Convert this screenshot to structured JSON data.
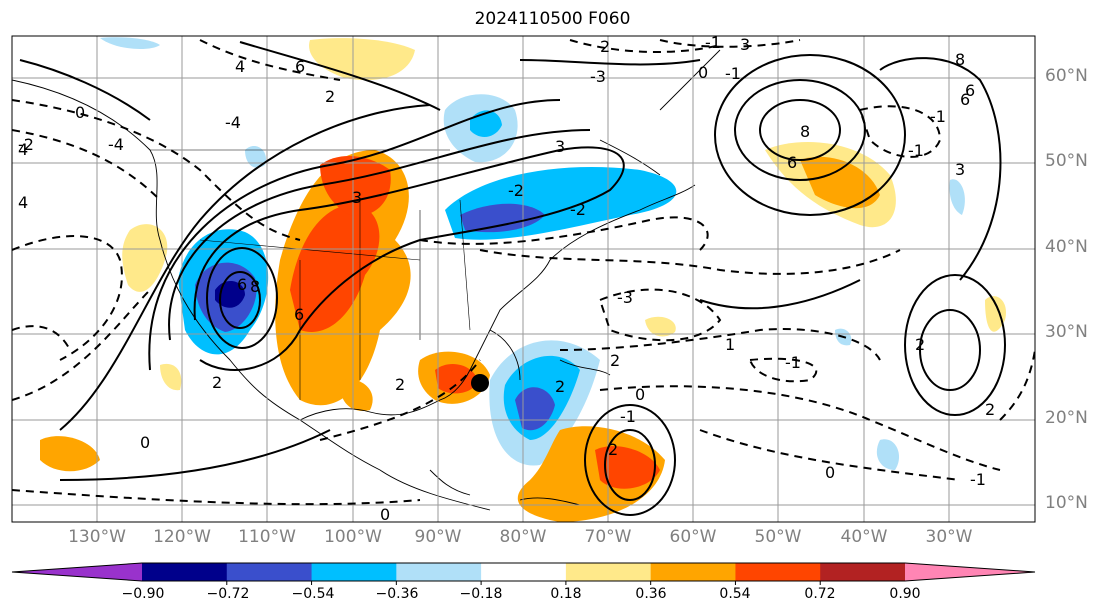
{
  "title": "2024110500 F060",
  "lat_labels": [
    "60°N",
    "50°N",
    "40°N",
    "30°N",
    "20°N",
    "10°N"
  ],
  "lon_labels": [
    "130°W",
    "120°W",
    "110°W",
    "100°W",
    "90°W",
    "80°W",
    "70°W",
    "60°W",
    "50°W",
    "40°W",
    "30°W"
  ],
  "colorbar": {
    "ticks": [
      "−0.90",
      "−0.72",
      "−0.54",
      "−0.36",
      "−0.18",
      "0.18",
      "0.36",
      "0.54",
      "0.72",
      "0.90"
    ],
    "colors": [
      "#9932cc",
      "#00008b",
      "#3a4fcc",
      "#00bfff",
      "#b0e0f8",
      "#ffffff",
      "#ffe98a",
      "#ffa500",
      "#ff4500",
      "#b22222",
      "#ff85b4"
    ]
  },
  "colors": {
    "land_outline": "#000000",
    "grid": "#9a9a9a",
    "contour": "#000000",
    "marker": "#000000"
  },
  "contour_labels": [
    "2",
    "6",
    "3",
    "8",
    "6",
    "3",
    "2",
    "1",
    "0",
    "-1",
    "6",
    "-2",
    "3",
    "-1",
    "2",
    "0",
    "2",
    "-3",
    "0",
    "-1",
    "-2",
    "-4",
    "-2",
    "4",
    "6",
    "8",
    "2",
    "3",
    "2",
    "-1",
    "0",
    "-1",
    "2",
    "2",
    "0",
    "-1",
    "-4",
    "8",
    "6",
    "6",
    "-3",
    "-1",
    "4",
    "4",
    "2",
    "0"
  ],
  "marker": "storm-center"
}
